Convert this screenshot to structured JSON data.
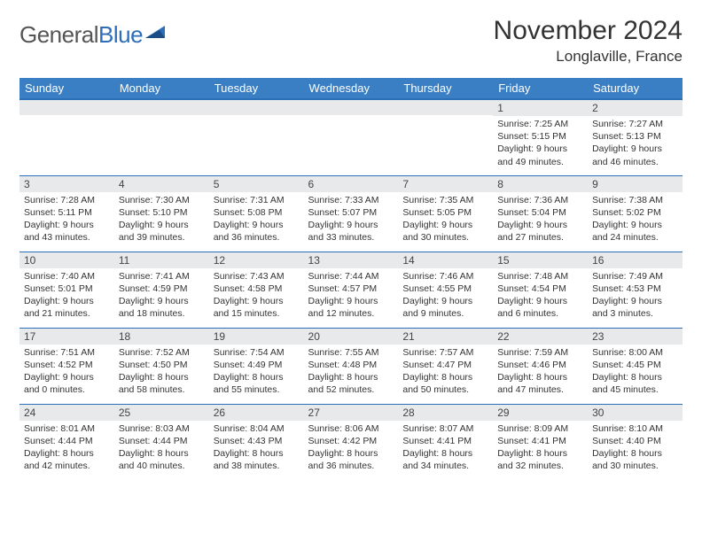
{
  "logo": {
    "word1": "General",
    "word2": "Blue"
  },
  "title": "November 2024",
  "location": "Longlaville, France",
  "header_bg": "#3a7fc4",
  "header_border": "#2d6eb8",
  "daynum_bg": "#e8e9ea",
  "days_of_week": [
    "Sunday",
    "Monday",
    "Tuesday",
    "Wednesday",
    "Thursday",
    "Friday",
    "Saturday"
  ],
  "weeks": [
    [
      {
        "num": "",
        "lines": []
      },
      {
        "num": "",
        "lines": []
      },
      {
        "num": "",
        "lines": []
      },
      {
        "num": "",
        "lines": []
      },
      {
        "num": "",
        "lines": []
      },
      {
        "num": "1",
        "lines": [
          "Sunrise: 7:25 AM",
          "Sunset: 5:15 PM",
          "Daylight: 9 hours and 49 minutes."
        ]
      },
      {
        "num": "2",
        "lines": [
          "Sunrise: 7:27 AM",
          "Sunset: 5:13 PM",
          "Daylight: 9 hours and 46 minutes."
        ]
      }
    ],
    [
      {
        "num": "3",
        "lines": [
          "Sunrise: 7:28 AM",
          "Sunset: 5:11 PM",
          "Daylight: 9 hours and 43 minutes."
        ]
      },
      {
        "num": "4",
        "lines": [
          "Sunrise: 7:30 AM",
          "Sunset: 5:10 PM",
          "Daylight: 9 hours and 39 minutes."
        ]
      },
      {
        "num": "5",
        "lines": [
          "Sunrise: 7:31 AM",
          "Sunset: 5:08 PM",
          "Daylight: 9 hours and 36 minutes."
        ]
      },
      {
        "num": "6",
        "lines": [
          "Sunrise: 7:33 AM",
          "Sunset: 5:07 PM",
          "Daylight: 9 hours and 33 minutes."
        ]
      },
      {
        "num": "7",
        "lines": [
          "Sunrise: 7:35 AM",
          "Sunset: 5:05 PM",
          "Daylight: 9 hours and 30 minutes."
        ]
      },
      {
        "num": "8",
        "lines": [
          "Sunrise: 7:36 AM",
          "Sunset: 5:04 PM",
          "Daylight: 9 hours and 27 minutes."
        ]
      },
      {
        "num": "9",
        "lines": [
          "Sunrise: 7:38 AM",
          "Sunset: 5:02 PM",
          "Daylight: 9 hours and 24 minutes."
        ]
      }
    ],
    [
      {
        "num": "10",
        "lines": [
          "Sunrise: 7:40 AM",
          "Sunset: 5:01 PM",
          "Daylight: 9 hours and 21 minutes."
        ]
      },
      {
        "num": "11",
        "lines": [
          "Sunrise: 7:41 AM",
          "Sunset: 4:59 PM",
          "Daylight: 9 hours and 18 minutes."
        ]
      },
      {
        "num": "12",
        "lines": [
          "Sunrise: 7:43 AM",
          "Sunset: 4:58 PM",
          "Daylight: 9 hours and 15 minutes."
        ]
      },
      {
        "num": "13",
        "lines": [
          "Sunrise: 7:44 AM",
          "Sunset: 4:57 PM",
          "Daylight: 9 hours and 12 minutes."
        ]
      },
      {
        "num": "14",
        "lines": [
          "Sunrise: 7:46 AM",
          "Sunset: 4:55 PM",
          "Daylight: 9 hours and 9 minutes."
        ]
      },
      {
        "num": "15",
        "lines": [
          "Sunrise: 7:48 AM",
          "Sunset: 4:54 PM",
          "Daylight: 9 hours and 6 minutes."
        ]
      },
      {
        "num": "16",
        "lines": [
          "Sunrise: 7:49 AM",
          "Sunset: 4:53 PM",
          "Daylight: 9 hours and 3 minutes."
        ]
      }
    ],
    [
      {
        "num": "17",
        "lines": [
          "Sunrise: 7:51 AM",
          "Sunset: 4:52 PM",
          "Daylight: 9 hours and 0 minutes."
        ]
      },
      {
        "num": "18",
        "lines": [
          "Sunrise: 7:52 AM",
          "Sunset: 4:50 PM",
          "Daylight: 8 hours and 58 minutes."
        ]
      },
      {
        "num": "19",
        "lines": [
          "Sunrise: 7:54 AM",
          "Sunset: 4:49 PM",
          "Daylight: 8 hours and 55 minutes."
        ]
      },
      {
        "num": "20",
        "lines": [
          "Sunrise: 7:55 AM",
          "Sunset: 4:48 PM",
          "Daylight: 8 hours and 52 minutes."
        ]
      },
      {
        "num": "21",
        "lines": [
          "Sunrise: 7:57 AM",
          "Sunset: 4:47 PM",
          "Daylight: 8 hours and 50 minutes."
        ]
      },
      {
        "num": "22",
        "lines": [
          "Sunrise: 7:59 AM",
          "Sunset: 4:46 PM",
          "Daylight: 8 hours and 47 minutes."
        ]
      },
      {
        "num": "23",
        "lines": [
          "Sunrise: 8:00 AM",
          "Sunset: 4:45 PM",
          "Daylight: 8 hours and 45 minutes."
        ]
      }
    ],
    [
      {
        "num": "24",
        "lines": [
          "Sunrise: 8:01 AM",
          "Sunset: 4:44 PM",
          "Daylight: 8 hours and 42 minutes."
        ]
      },
      {
        "num": "25",
        "lines": [
          "Sunrise: 8:03 AM",
          "Sunset: 4:44 PM",
          "Daylight: 8 hours and 40 minutes."
        ]
      },
      {
        "num": "26",
        "lines": [
          "Sunrise: 8:04 AM",
          "Sunset: 4:43 PM",
          "Daylight: 8 hours and 38 minutes."
        ]
      },
      {
        "num": "27",
        "lines": [
          "Sunrise: 8:06 AM",
          "Sunset: 4:42 PM",
          "Daylight: 8 hours and 36 minutes."
        ]
      },
      {
        "num": "28",
        "lines": [
          "Sunrise: 8:07 AM",
          "Sunset: 4:41 PM",
          "Daylight: 8 hours and 34 minutes."
        ]
      },
      {
        "num": "29",
        "lines": [
          "Sunrise: 8:09 AM",
          "Sunset: 4:41 PM",
          "Daylight: 8 hours and 32 minutes."
        ]
      },
      {
        "num": "30",
        "lines": [
          "Sunrise: 8:10 AM",
          "Sunset: 4:40 PM",
          "Daylight: 8 hours and 30 minutes."
        ]
      }
    ]
  ]
}
